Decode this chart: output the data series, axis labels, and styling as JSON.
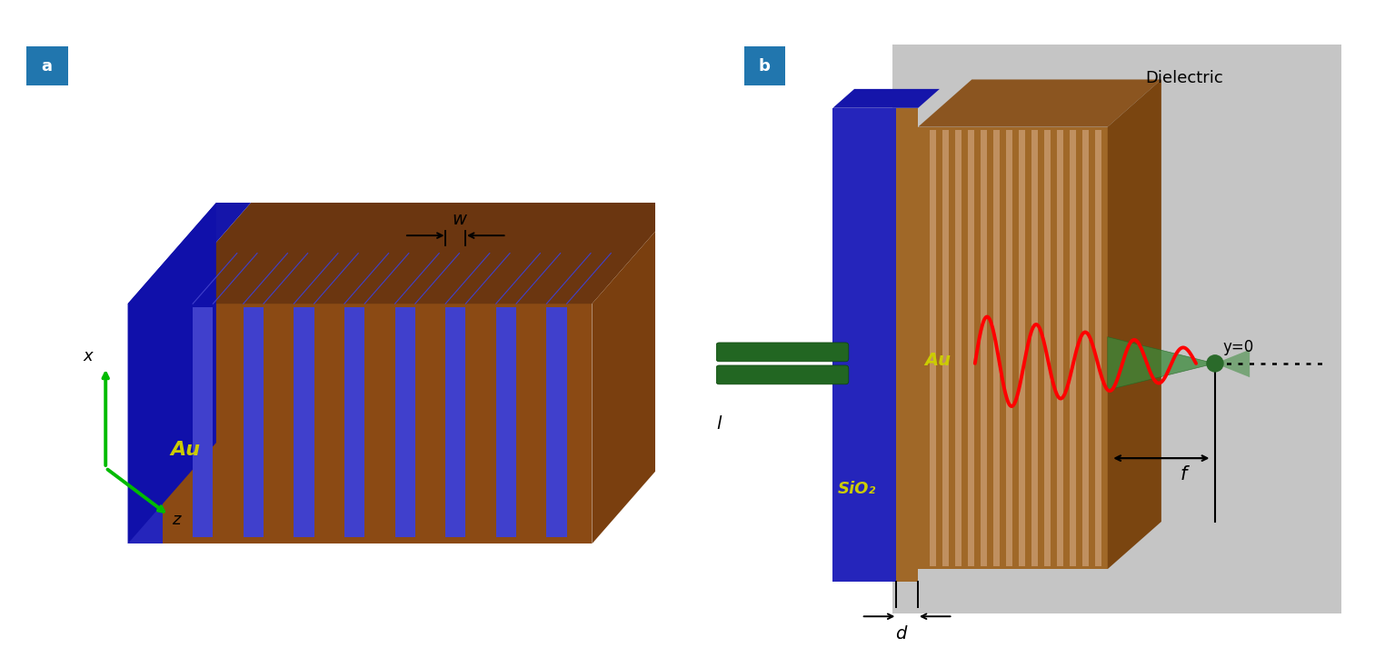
{
  "panel_a": {
    "label": "a",
    "label_bg": "#2176AE",
    "au_color": "#8B4A14",
    "au_top_color": "#6B3610",
    "au_right_color": "#7A3F0F",
    "sio2_front_color": "#2525BB",
    "sio2_top_color": "#1515AA",
    "slot_color": "#4040CC",
    "au_label": "Au",
    "au_label_color": "#CCCC00",
    "x_label": "x",
    "z_label": "z",
    "w_label": "w",
    "l_label": "l",
    "axis_color": "#00BB00"
  },
  "panel_b": {
    "label": "b",
    "label_bg": "#2176AE",
    "au_front_color": "#A06828",
    "au_top_color": "#8B5520",
    "au_right_color": "#7A4510",
    "sio2_color": "#2525BB",
    "sio2_top_color": "#1515AA",
    "dielectric_color": "#C5C5C5",
    "dielectric_label": "Dielectric",
    "au_label": "Au",
    "au_label_color": "#CCCC00",
    "sio2_label": "SiO₂",
    "sio2_label_color": "#CCCC00",
    "beam_color": "#226622",
    "beam_dark": "#0A440A",
    "wave_color": "#FF0000",
    "f_label": "f",
    "d_label": "d",
    "y0_label": "y=0",
    "arrow_color": "black"
  },
  "bg_color": "#FFFFFF"
}
